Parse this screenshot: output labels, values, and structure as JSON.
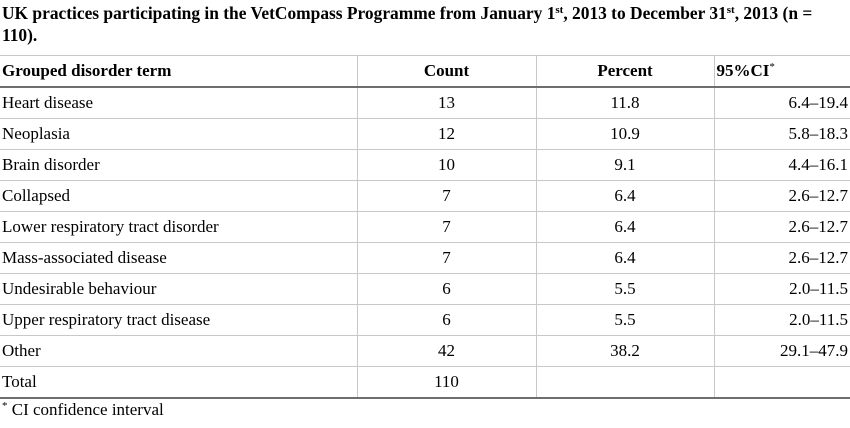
{
  "caption": {
    "part1": "UK practices participating in the VetCompass Programme from January 1",
    "sup1": "st",
    "part2": ", 2013 to December 31",
    "sup2": "st",
    "part3": ", 2013 (n = 110)."
  },
  "table": {
    "headers": {
      "term": "Grouped disorder term",
      "count": "Count",
      "percent": "Percent",
      "ci": "95%CI",
      "ci_marker": "*"
    },
    "rows": [
      {
        "term": "Heart disease",
        "count": "13",
        "percent": "11.8",
        "ci": "6.4–19.4"
      },
      {
        "term": "Neoplasia",
        "count": "12",
        "percent": "10.9",
        "ci": "5.8–18.3"
      },
      {
        "term": "Brain disorder",
        "count": "10",
        "percent": "9.1",
        "ci": "4.4–16.1"
      },
      {
        "term": "Collapsed",
        "count": "7",
        "percent": "6.4",
        "ci": "2.6–12.7"
      },
      {
        "term": "Lower respiratory tract disorder",
        "count": "7",
        "percent": "6.4",
        "ci": "2.6–12.7"
      },
      {
        "term": "Mass-associated disease",
        "count": "7",
        "percent": "6.4",
        "ci": "2.6–12.7"
      },
      {
        "term": "Undesirable behaviour",
        "count": "6",
        "percent": "5.5",
        "ci": "2.0–11.5"
      },
      {
        "term": "Upper respiratory tract disease",
        "count": "6",
        "percent": "5.5",
        "ci": "2.0–11.5"
      },
      {
        "term": "Other",
        "count": "42",
        "percent": "38.2",
        "ci": "29.1–47.9"
      },
      {
        "term": "Total",
        "count": "110",
        "percent": "",
        "ci": ""
      }
    ]
  },
  "footnote": {
    "marker": "*",
    "text": " CI confidence interval"
  }
}
